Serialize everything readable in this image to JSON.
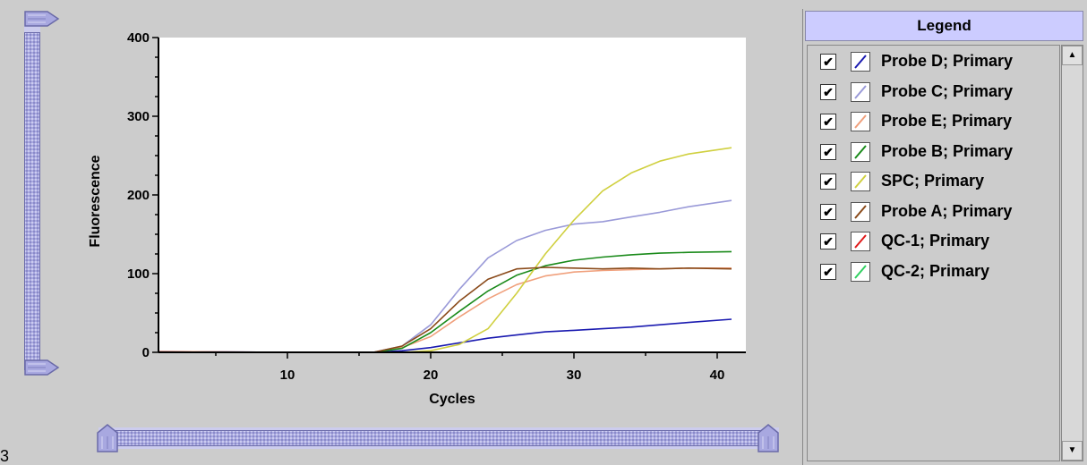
{
  "corner_label": "3",
  "legend": {
    "title": "Legend",
    "items": [
      {
        "checked": "✔",
        "label": "Probe D; Primary",
        "color": "#1a1ab0"
      },
      {
        "checked": "✔",
        "label": "Probe C; Primary",
        "color": "#9a9ad8"
      },
      {
        "checked": "✔",
        "label": "Probe E; Primary",
        "color": "#f0a07c"
      },
      {
        "checked": "✔",
        "label": "Probe B; Primary",
        "color": "#1a8a1a"
      },
      {
        "checked": "✔",
        "label": "SPC; Primary",
        "color": "#d0d040"
      },
      {
        "checked": "✔",
        "label": "Probe A; Primary",
        "color": "#8a4a1a"
      },
      {
        "checked": "✔",
        "label": "QC-1; Primary",
        "color": "#e01a1a"
      },
      {
        "checked": "✔",
        "label": "QC-2; Primary",
        "color": "#30d060"
      }
    ],
    "scroll_up": "▲",
    "scroll_down": "▼"
  },
  "chart_data": {
    "type": "line",
    "title": "",
    "xlabel": "Cycles",
    "ylabel": "Fluorescence",
    "xlim": [
      1,
      42
    ],
    "ylim": [
      0,
      400
    ],
    "xticks": [
      10,
      20,
      30,
      40
    ],
    "yticks": [
      0,
      100,
      200,
      300,
      400
    ],
    "grid": false,
    "background": "#ffffff",
    "series": [
      {
        "name": "Probe D; Primary",
        "color": "#1a1ab0",
        "x": [
          1,
          10,
          16,
          18,
          20,
          22,
          24,
          26,
          28,
          30,
          32,
          34,
          36,
          38,
          41
        ],
        "y": [
          1,
          0,
          0,
          2,
          6,
          12,
          18,
          22,
          26,
          28,
          30,
          32,
          35,
          38,
          42
        ]
      },
      {
        "name": "Probe C; Primary",
        "color": "#9a9ad8",
        "x": [
          1,
          10,
          16,
          18,
          20,
          22,
          24,
          26,
          28,
          30,
          32,
          34,
          36,
          38,
          41
        ],
        "y": [
          0,
          0,
          0,
          8,
          35,
          80,
          120,
          142,
          155,
          163,
          166,
          172,
          178,
          185,
          193
        ]
      },
      {
        "name": "Probe E; Primary",
        "color": "#f0a07c",
        "x": [
          1,
          10,
          16,
          18,
          20,
          22,
          24,
          26,
          28,
          30,
          32,
          34,
          36,
          38,
          41
        ],
        "y": [
          1,
          0,
          0,
          6,
          20,
          45,
          68,
          86,
          97,
          102,
          104,
          105,
          106,
          107,
          107
        ]
      },
      {
        "name": "Probe B; Primary",
        "color": "#1a8a1a",
        "x": [
          1,
          10,
          16,
          18,
          20,
          22,
          24,
          26,
          28,
          30,
          32,
          34,
          36,
          38,
          41
        ],
        "y": [
          0,
          0,
          0,
          5,
          25,
          52,
          78,
          98,
          110,
          117,
          121,
          124,
          126,
          127,
          128
        ]
      },
      {
        "name": "SPC; Primary",
        "color": "#d0d040",
        "x": [
          1,
          10,
          16,
          18,
          20,
          22,
          24,
          26,
          28,
          30,
          32,
          34,
          36,
          38,
          41
        ],
        "y": [
          0,
          0,
          0,
          0,
          2,
          10,
          30,
          75,
          125,
          168,
          205,
          228,
          243,
          252,
          260
        ]
      },
      {
        "name": "Probe A; Primary",
        "color": "#8a4a1a",
        "x": [
          1,
          10,
          16,
          18,
          20,
          22,
          24,
          26,
          28,
          30,
          32,
          34,
          36,
          38,
          41
        ],
        "y": [
          0,
          0,
          0,
          8,
          30,
          65,
          93,
          106,
          108,
          107,
          106,
          107,
          106,
          107,
          106
        ]
      },
      {
        "name": "QC-1; Primary",
        "color": "#e01a1a",
        "x": [
          1,
          10,
          16,
          20,
          30,
          41
        ],
        "y": [
          0,
          0,
          0,
          0,
          0,
          0
        ]
      },
      {
        "name": "QC-2; Primary",
        "color": "#30d060",
        "x": [
          1,
          10,
          16,
          20,
          30,
          41
        ],
        "y": [
          0,
          0,
          0,
          0,
          0,
          0
        ]
      }
    ]
  }
}
